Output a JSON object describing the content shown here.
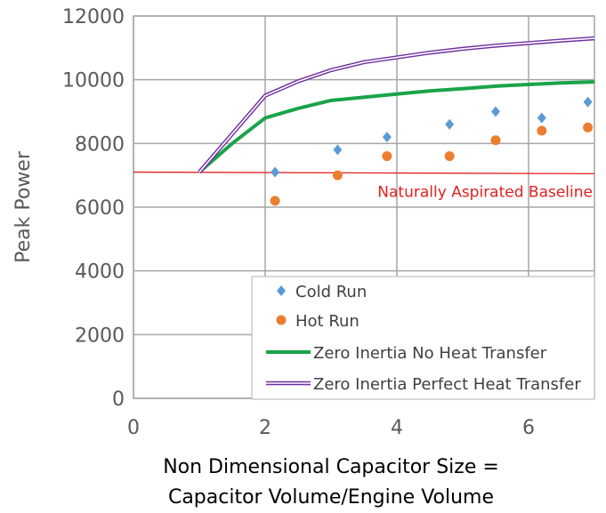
{
  "chart_data": {
    "type": "line",
    "title": "",
    "xlabel_lines": [
      "Non Dimensional Capacitor Size =",
      "Capacitor Volume/Engine Volume"
    ],
    "ylabel": "Peak Power",
    "xlim": [
      0,
      7
    ],
    "ylim": [
      0,
      12000
    ],
    "xticks": [
      0,
      2,
      4,
      6
    ],
    "yticks": [
      0,
      2000,
      4000,
      6000,
      8000,
      10000,
      12000
    ],
    "grid": true,
    "legend_position": "bottom-right",
    "series": [
      {
        "name": "Cold Run",
        "kind": "scatter",
        "marker": "diamond",
        "color": "#5b9bd5",
        "x": [
          2.15,
          3.1,
          3.85,
          4.8,
          5.5,
          6.2,
          6.9
        ],
        "y": [
          7100,
          7800,
          8200,
          8600,
          9000,
          8800,
          9300
        ]
      },
      {
        "name": "Hot Run",
        "kind": "scatter",
        "marker": "circle",
        "color": "#ed7d31",
        "x": [
          2.15,
          3.1,
          3.85,
          4.8,
          5.5,
          6.2,
          6.9
        ],
        "y": [
          6200,
          7000,
          7600,
          7600,
          8100,
          8400,
          8500
        ]
      },
      {
        "name": "Zero Inertia No Heat Transfer",
        "kind": "line",
        "style": "thick",
        "color": "#1aa34a",
        "x": [
          1.0,
          1.5,
          2.0,
          2.5,
          3.0,
          3.5,
          4.0,
          4.5,
          5.0,
          5.5,
          6.0,
          6.5,
          7.0
        ],
        "y": [
          7100,
          8000,
          8800,
          9100,
          9350,
          9450,
          9550,
          9650,
          9720,
          9800,
          9850,
          9900,
          9930
        ]
      },
      {
        "name": "Zero Inertia Perfect Heat Transfer",
        "kind": "line",
        "style": "double",
        "color": "#7030a0",
        "x": [
          1.0,
          1.5,
          2.0,
          2.5,
          3.0,
          3.5,
          4.0,
          4.5,
          5.0,
          5.5,
          6.0,
          6.5,
          7.0
        ],
        "y": [
          7100,
          8300,
          9500,
          9950,
          10300,
          10550,
          10700,
          10850,
          10970,
          11070,
          11150,
          11230,
          11300
        ]
      }
    ],
    "reference_line": {
      "label": "Naturally Aspirated Baseline",
      "color": "#e02020",
      "x": [
        0,
        7
      ],
      "y": [
        7100,
        7050
      ]
    }
  }
}
